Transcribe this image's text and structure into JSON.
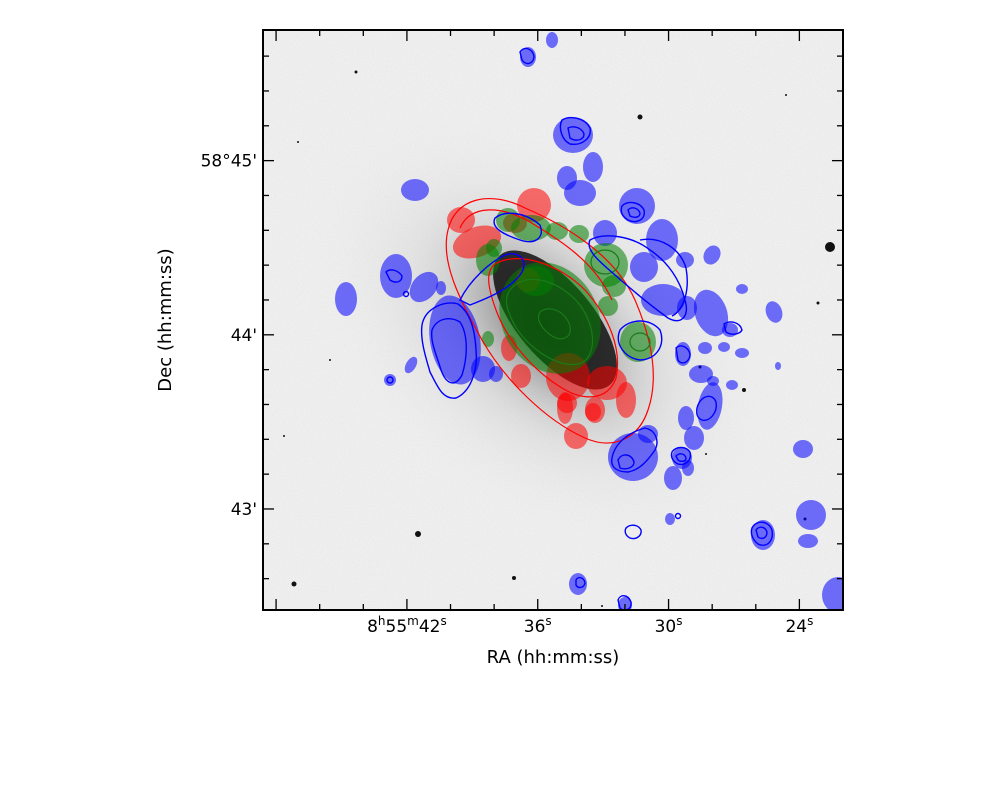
{
  "chart_data": {
    "type": "image",
    "xlabel": "RA (hh:mm:ss)",
    "ylabel": "Dec (hh:mm:ss)",
    "x_ticks": [
      {
        "value": 42,
        "label": "8h55m42s",
        "parts": [
          "8",
          "h",
          "55",
          "m",
          "42",
          "s"
        ]
      },
      {
        "value": 36,
        "label": "36s",
        "parts": [
          "36",
          "s"
        ]
      },
      {
        "value": 30,
        "label": "30s",
        "parts": [
          "30",
          "s"
        ]
      },
      {
        "value": 24,
        "label": "24s",
        "parts": [
          "24",
          "s"
        ]
      }
    ],
    "y_ticks": [
      {
        "value": 45,
        "label": "58°45'"
      },
      {
        "value": 44,
        "label": "44'"
      },
      {
        "value": 43,
        "label": "43'"
      }
    ],
    "xlim_seconds": [
      48.6,
      22.0
    ],
    "ylim_arcmin": [
      42.42,
      45.75
    ],
    "colors": {
      "background_image": "grayscale",
      "blue_layer": "#0000ff",
      "green_layer": "#008000",
      "red_layer": "#ff0000"
    }
  }
}
